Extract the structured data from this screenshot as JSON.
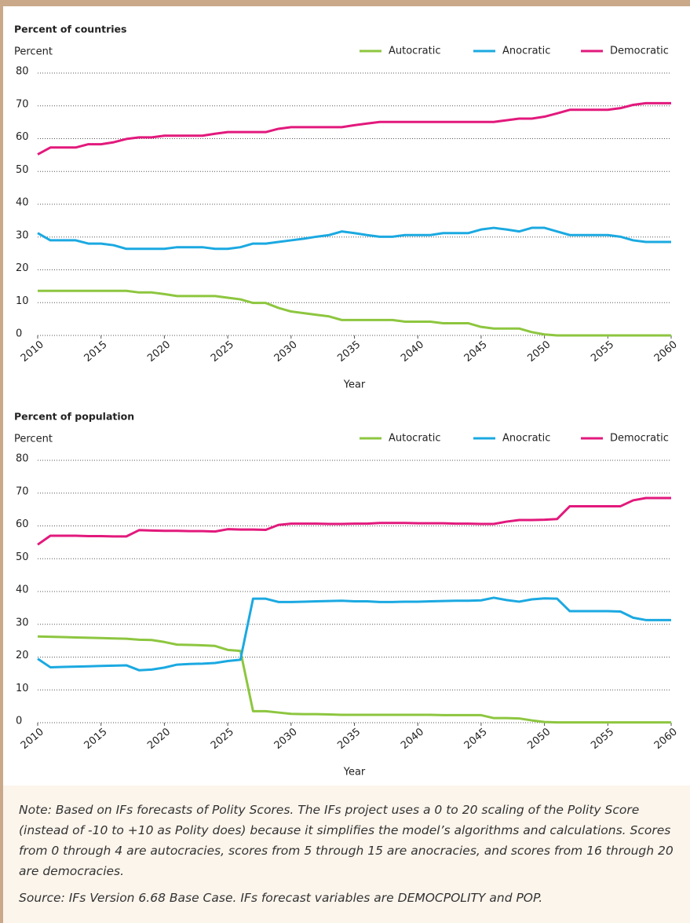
{
  "chart_data": [
    {
      "type": "line",
      "title": "Percent of countries",
      "ylabel": "Percent",
      "xlabel": "Year",
      "x": [
        2010,
        2011,
        2012,
        2013,
        2014,
        2015,
        2016,
        2017,
        2018,
        2019,
        2020,
        2021,
        2022,
        2023,
        2024,
        2025,
        2026,
        2027,
        2028,
        2029,
        2030,
        2031,
        2032,
        2033,
        2034,
        2035,
        2036,
        2037,
        2038,
        2039,
        2040,
        2041,
        2042,
        2043,
        2044,
        2045,
        2046,
        2047,
        2048,
        2049,
        2050,
        2051,
        2052,
        2053,
        2054,
        2055,
        2056,
        2057,
        2058,
        2059,
        2060
      ],
      "xlim": [
        2010,
        2060
      ],
      "xticks": [
        2010,
        2015,
        2020,
        2025,
        2030,
        2035,
        2040,
        2045,
        2050,
        2055,
        2060
      ],
      "ylim": [
        0,
        80
      ],
      "yticks": [
        0,
        10,
        20,
        30,
        40,
        50,
        60,
        70,
        80
      ],
      "grid": true,
      "series": [
        {
          "name": "Autocratic",
          "color": "#8dc63f",
          "values": [
            13.6,
            13.6,
            13.6,
            13.6,
            13.6,
            13.6,
            13.6,
            13.6,
            13.1,
            13.1,
            12.6,
            12.0,
            12.0,
            12.0,
            12.0,
            11.5,
            11.0,
            9.9,
            9.9,
            8.4,
            7.3,
            6.8,
            6.3,
            5.8,
            4.7,
            4.7,
            4.7,
            4.7,
            4.7,
            4.2,
            4.2,
            4.2,
            3.7,
            3.7,
            3.7,
            2.6,
            2.1,
            2.1,
            2.1,
            1.0,
            0.3,
            0,
            0,
            0,
            0,
            0,
            0,
            0,
            0,
            0,
            0
          ]
        },
        {
          "name": "Anocratic",
          "color": "#1ba9e1",
          "values": [
            31.2,
            29.0,
            29.0,
            29.0,
            28.0,
            28.0,
            27.5,
            26.4,
            26.4,
            26.4,
            26.4,
            26.9,
            26.9,
            26.9,
            26.4,
            26.4,
            26.9,
            28.0,
            28.0,
            28.5,
            29.0,
            29.5,
            30.1,
            30.6,
            31.7,
            31.2,
            30.6,
            30.1,
            30.1,
            30.6,
            30.6,
            30.6,
            31.2,
            31.2,
            31.2,
            32.3,
            32.8,
            32.3,
            31.7,
            32.8,
            32.8,
            31.7,
            30.6,
            30.6,
            30.6,
            30.6,
            30.1,
            29.0,
            28.5,
            28.5,
            28.5
          ]
        },
        {
          "name": "Democratic",
          "color": "#e2197c",
          "values": [
            55.2,
            57.3,
            57.3,
            57.3,
            58.3,
            58.3,
            58.9,
            59.9,
            60.4,
            60.4,
            60.9,
            60.9,
            60.9,
            60.9,
            61.5,
            62.0,
            62.0,
            62.0,
            62.0,
            63.0,
            63.5,
            63.5,
            63.5,
            63.5,
            63.5,
            64.1,
            64.6,
            65.1,
            65.1,
            65.1,
            65.1,
            65.1,
            65.1,
            65.1,
            65.1,
            65.1,
            65.1,
            65.6,
            66.1,
            66.1,
            66.7,
            67.7,
            68.8,
            68.8,
            68.8,
            68.8,
            69.3,
            70.3,
            70.8,
            70.8,
            70.8
          ]
        }
      ],
      "legend": "top-right"
    },
    {
      "type": "line",
      "title": "Percent of population",
      "ylabel": "Percent",
      "xlabel": "Year",
      "x": [
        2010,
        2011,
        2012,
        2013,
        2014,
        2015,
        2016,
        2017,
        2018,
        2019,
        2020,
        2021,
        2022,
        2023,
        2024,
        2025,
        2026,
        2027,
        2028,
        2029,
        2030,
        2031,
        2032,
        2033,
        2034,
        2035,
        2036,
        2037,
        2038,
        2039,
        2040,
        2041,
        2042,
        2043,
        2044,
        2045,
        2046,
        2047,
        2048,
        2049,
        2050,
        2051,
        2052,
        2053,
        2054,
        2055,
        2056,
        2057,
        2058,
        2059,
        2060
      ],
      "xlim": [
        2010,
        2060
      ],
      "xticks": [
        2010,
        2015,
        2020,
        2025,
        2030,
        2035,
        2040,
        2045,
        2050,
        2055,
        2060
      ],
      "ylim": [
        0,
        80
      ],
      "yticks": [
        0,
        10,
        20,
        30,
        40,
        50,
        60,
        70,
        80
      ],
      "grid": true,
      "series": [
        {
          "name": "Autocratic",
          "color": "#8dc63f",
          "values": [
            26.3,
            26.2,
            26.1,
            26.0,
            25.9,
            25.8,
            25.7,
            25.6,
            25.3,
            25.2,
            24.6,
            23.8,
            23.7,
            23.6,
            23.4,
            22.2,
            21.9,
            3.5,
            3.5,
            3.1,
            2.7,
            2.6,
            2.6,
            2.5,
            2.4,
            2.4,
            2.4,
            2.4,
            2.4,
            2.4,
            2.4,
            2.4,
            2.3,
            2.3,
            2.3,
            2.3,
            1.4,
            1.4,
            1.3,
            0.7,
            0.2,
            0.1,
            0.1,
            0.1,
            0.1,
            0.1,
            0.1,
            0.1,
            0.1,
            0.1,
            0.1
          ]
        },
        {
          "name": "Anocratic",
          "color": "#1ba9e1",
          "values": [
            19.5,
            16.9,
            17.0,
            17.1,
            17.2,
            17.3,
            17.4,
            17.5,
            16.0,
            16.2,
            16.8,
            17.7,
            17.9,
            18.0,
            18.2,
            18.8,
            19.2,
            37.8,
            37.8,
            36.8,
            36.8,
            36.9,
            37.0,
            37.1,
            37.2,
            37.0,
            37.0,
            36.8,
            36.8,
            36.9,
            36.9,
            37.0,
            37.1,
            37.2,
            37.2,
            37.3,
            38.1,
            37.4,
            36.9,
            37.6,
            37.9,
            37.8,
            34.0,
            34.0,
            34.0,
            34.0,
            33.9,
            32.0,
            31.3,
            31.3,
            31.3
          ]
        },
        {
          "name": "Democratic",
          "color": "#e2197c",
          "values": [
            54.3,
            57.0,
            57.0,
            57.0,
            56.9,
            56.9,
            56.8,
            56.8,
            58.7,
            58.6,
            58.5,
            58.5,
            58.4,
            58.4,
            58.3,
            59.0,
            58.9,
            58.9,
            58.8,
            60.3,
            60.7,
            60.7,
            60.7,
            60.6,
            60.6,
            60.7,
            60.7,
            60.9,
            60.9,
            60.9,
            60.8,
            60.8,
            60.8,
            60.7,
            60.7,
            60.6,
            60.6,
            61.3,
            61.8,
            61.8,
            61.9,
            62.1,
            66.0,
            66.0,
            66.0,
            66.0,
            66.0,
            67.8,
            68.5,
            68.5,
            68.5
          ]
        }
      ],
      "legend": "top-right"
    }
  ],
  "note": "Note: Based on IFs forecasts of Polity Scores. The IFs project uses a 0 to 20 scaling of the Polity Score (instead of -10 to +10 as Polity does) because it simplifies the model’s algorithms and calculations. Scores from 0 through 4 are autocracies, scores from 5 through 15 are anocracies, and scores from 16 through 20 are democracies.",
  "source": "Source: IFs Version 6.68 Base Case. IFs forecast variables are DEMOCPOLITY and POP."
}
